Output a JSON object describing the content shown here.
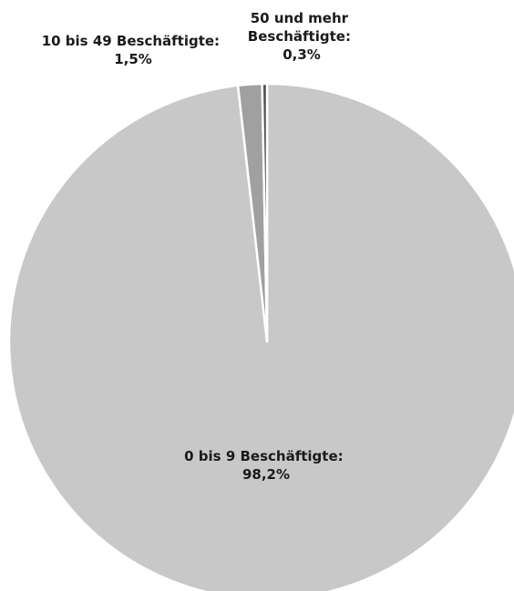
{
  "chart_data": {
    "type": "pie",
    "categories": [
      "0 bis 9 Beschäftigte",
      "10 bis 49 Beschäftigte",
      "50 und mehr Beschäftigte"
    ],
    "values": [
      98.2,
      1.5,
      0.3
    ],
    "unit": "%",
    "start_angle": "12 o'clock",
    "direction": "clockwise",
    "colors": [
      "#c8c8c8",
      "#a0a0a0",
      "#505050"
    ],
    "slice_border_color": "#ffffff",
    "data_labels": [
      {
        "lines": [
          "0 bis 9 Beschäftigte:",
          "98,2%"
        ]
      },
      {
        "lines": [
          "10 bis 49 Beschäftigte:",
          "1,5%"
        ]
      },
      {
        "lines": [
          "50 und mehr",
          "Beschäftigte:",
          "0,3%"
        ]
      }
    ]
  }
}
